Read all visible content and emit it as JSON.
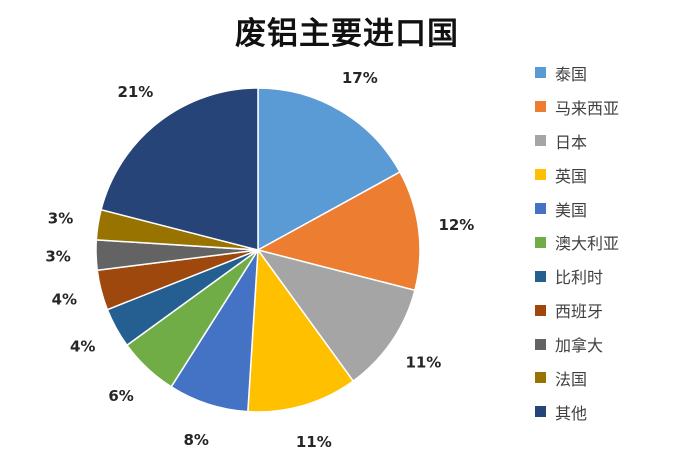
{
  "chart_data": {
    "type": "pie",
    "title": "废铝主要进口国",
    "categories": [
      "泰国",
      "马来西亚",
      "日本",
      "英国",
      "美国",
      "澳大利亚",
      "比利时",
      "西班牙",
      "加拿大",
      "法国",
      "其他"
    ],
    "values": [
      17,
      12,
      11,
      11,
      8,
      6,
      4,
      4,
      3,
      3,
      21
    ],
    "labels": [
      "17%",
      "12%",
      "11%",
      "11%",
      "8%",
      "6%",
      "4%",
      "4%",
      "3%",
      "3%",
      "21%"
    ],
    "colors": [
      "#5B9BD5",
      "#ED7D31",
      "#A5A5A5",
      "#FFC000",
      "#4472C4",
      "#70AD47",
      "#255E91",
      "#9E480E",
      "#636363",
      "#997300",
      "#264478"
    ],
    "legend_position": "right",
    "start_angle_deg": 0,
    "direction": "clockwise"
  }
}
